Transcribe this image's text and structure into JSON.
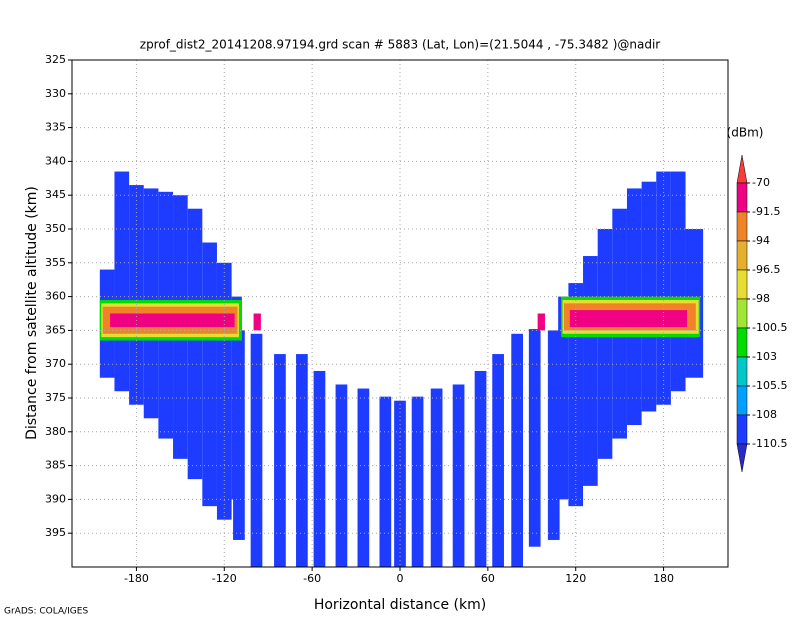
{
  "chart_data": {
    "type": "field",
    "title": "zprof_dist2_20141208.97194.grd  scan # 5883  (Lat, Lon)=(21.5044 , -75.3482 )@nadir",
    "x_label": "Horizontal distance (km)",
    "y_label": "Distance from satellite altitude (km)",
    "footer": "GrADS: COLA/IGES",
    "xlim": [
      -224,
      224
    ],
    "ylim": [
      400,
      325
    ],
    "xticks": [
      -180,
      -120,
      -60,
      0,
      60,
      120,
      180
    ],
    "yticks": [
      325,
      330,
      335,
      340,
      345,
      350,
      355,
      360,
      365,
      370,
      375,
      380,
      385,
      390,
      395
    ],
    "grid": true,
    "colorbar": {
      "title": "(dBm)",
      "levels": [
        -70,
        -91.5,
        -94,
        -96.5,
        -98,
        -100.5,
        -103,
        -105.5,
        -108,
        -110.5
      ],
      "colors": [
        "#fa3c3c",
        "#f00082",
        "#f08228",
        "#e6af2d",
        "#e6dc32",
        "#a0e632",
        "#00dc00",
        "#00c8c8",
        "#00a0ff",
        "#1e3cff",
        "#2a2ac8"
      ]
    },
    "regions": [
      {
        "x": [
          -205,
          -195
        ],
        "y": [
          356,
          372
        ],
        "value": -109
      },
      {
        "x": [
          -195,
          -185
        ],
        "y": [
          341.5,
          374
        ],
        "value": -109
      },
      {
        "x": [
          -185,
          -175
        ],
        "y": [
          343.5,
          376
        ],
        "value": -109
      },
      {
        "x": [
          -175,
          -165
        ],
        "y": [
          344,
          378
        ],
        "value": -109
      },
      {
        "x": [
          -165,
          -155
        ],
        "y": [
          344.5,
          381
        ],
        "value": -109
      },
      {
        "x": [
          -155,
          -145
        ],
        "y": [
          345,
          384
        ],
        "value": -109
      },
      {
        "x": [
          -145,
          -135
        ],
        "y": [
          347,
          387
        ],
        "value": -109
      },
      {
        "x": [
          -135,
          -125
        ],
        "y": [
          352,
          391
        ],
        "value": -109
      },
      {
        "x": [
          -125,
          -115
        ],
        "y": [
          355,
          393
        ],
        "value": -109
      },
      {
        "x": [
          -115,
          -108
        ],
        "y": [
          360,
          390
        ],
        "value": -109
      },
      {
        "x": [
          -114,
          -106
        ],
        "y": [
          365,
          396
        ],
        "value": -109
      },
      {
        "x": [
          -102,
          -94
        ],
        "y": [
          365.5,
          400
        ],
        "value": -109
      },
      {
        "x": [
          -86,
          -78
        ],
        "y": [
          368.5,
          400
        ],
        "value": -109
      },
      {
        "x": [
          -71,
          -63
        ],
        "y": [
          368.5,
          400
        ],
        "value": -109
      },
      {
        "x": [
          -59,
          -51
        ],
        "y": [
          371,
          400
        ],
        "value": -109
      },
      {
        "x": [
          -44,
          -36
        ],
        "y": [
          373,
          400
        ],
        "value": -109
      },
      {
        "x": [
          -29,
          -21
        ],
        "y": [
          373.6,
          400
        ],
        "value": -109
      },
      {
        "x": [
          -14,
          -6
        ],
        "y": [
          374.8,
          400
        ],
        "value": -109
      },
      {
        "x": [
          -4,
          4
        ],
        "y": [
          375.4,
          400
        ],
        "value": -109
      },
      {
        "x": [
          8,
          16
        ],
        "y": [
          374.8,
          400
        ],
        "value": -109
      },
      {
        "x": [
          21,
          29
        ],
        "y": [
          373.6,
          400
        ],
        "value": -109
      },
      {
        "x": [
          36,
          44
        ],
        "y": [
          373,
          400
        ],
        "value": -109
      },
      {
        "x": [
          51,
          59
        ],
        "y": [
          371,
          400
        ],
        "value": -109
      },
      {
        "x": [
          63,
          71
        ],
        "y": [
          368.5,
          400
        ],
        "value": -109
      },
      {
        "x": [
          76,
          84
        ],
        "y": [
          365.5,
          400
        ],
        "value": -109
      },
      {
        "x": [
          88,
          96
        ],
        "y": [
          364.8,
          397
        ],
        "value": -109
      },
      {
        "x": [
          101,
          109
        ],
        "y": [
          365,
          396
        ],
        "value": -109
      },
      {
        "x": [
          108,
          115
        ],
        "y": [
          360,
          390
        ],
        "value": -109
      },
      {
        "x": [
          115,
          125
        ],
        "y": [
          358,
          391
        ],
        "value": -109
      },
      {
        "x": [
          125,
          135
        ],
        "y": [
          354,
          388
        ],
        "value": -109
      },
      {
        "x": [
          135,
          145
        ],
        "y": [
          350,
          384
        ],
        "value": -109
      },
      {
        "x": [
          145,
          155
        ],
        "y": [
          347,
          381
        ],
        "value": -109
      },
      {
        "x": [
          155,
          165
        ],
        "y": [
          344,
          379
        ],
        "value": -109
      },
      {
        "x": [
          165,
          175
        ],
        "y": [
          343,
          377
        ],
        "value": -109
      },
      {
        "x": [
          175,
          185
        ],
        "y": [
          341.5,
          376
        ],
        "value": -109
      },
      {
        "x": [
          185,
          195
        ],
        "y": [
          341.5,
          374
        ],
        "value": -109
      },
      {
        "x": [
          195,
          207
        ],
        "y": [
          350,
          372
        ],
        "value": -109
      },
      {
        "x": [
          -205,
          -108
        ],
        "y": [
          360.5,
          366.5
        ],
        "value": -102
      },
      {
        "x": [
          -204,
          -110
        ],
        "y": [
          361,
          366
        ],
        "value": -97
      },
      {
        "x": [
          -203,
          -111
        ],
        "y": [
          361.5,
          365.5
        ],
        "value": -93
      },
      {
        "x": [
          -198,
          -113
        ],
        "y": [
          362.5,
          364.5
        ],
        "value": -85
      },
      {
        "x": [
          -100,
          -95
        ],
        "y": [
          362.5,
          365
        ],
        "value": -85
      },
      {
        "x": [
          94,
          99
        ],
        "y": [
          362.5,
          365
        ],
        "value": -85
      },
      {
        "x": [
          110,
          205
        ],
        "y": [
          360,
          366
        ],
        "value": -102
      },
      {
        "x": [
          111,
          204
        ],
        "y": [
          360.5,
          365.5
        ],
        "value": -97
      },
      {
        "x": [
          112,
          202
        ],
        "y": [
          361,
          365
        ],
        "value": -93
      },
      {
        "x": [
          116,
          196
        ],
        "y": [
          362,
          364.5
        ],
        "value": -85
      }
    ]
  }
}
